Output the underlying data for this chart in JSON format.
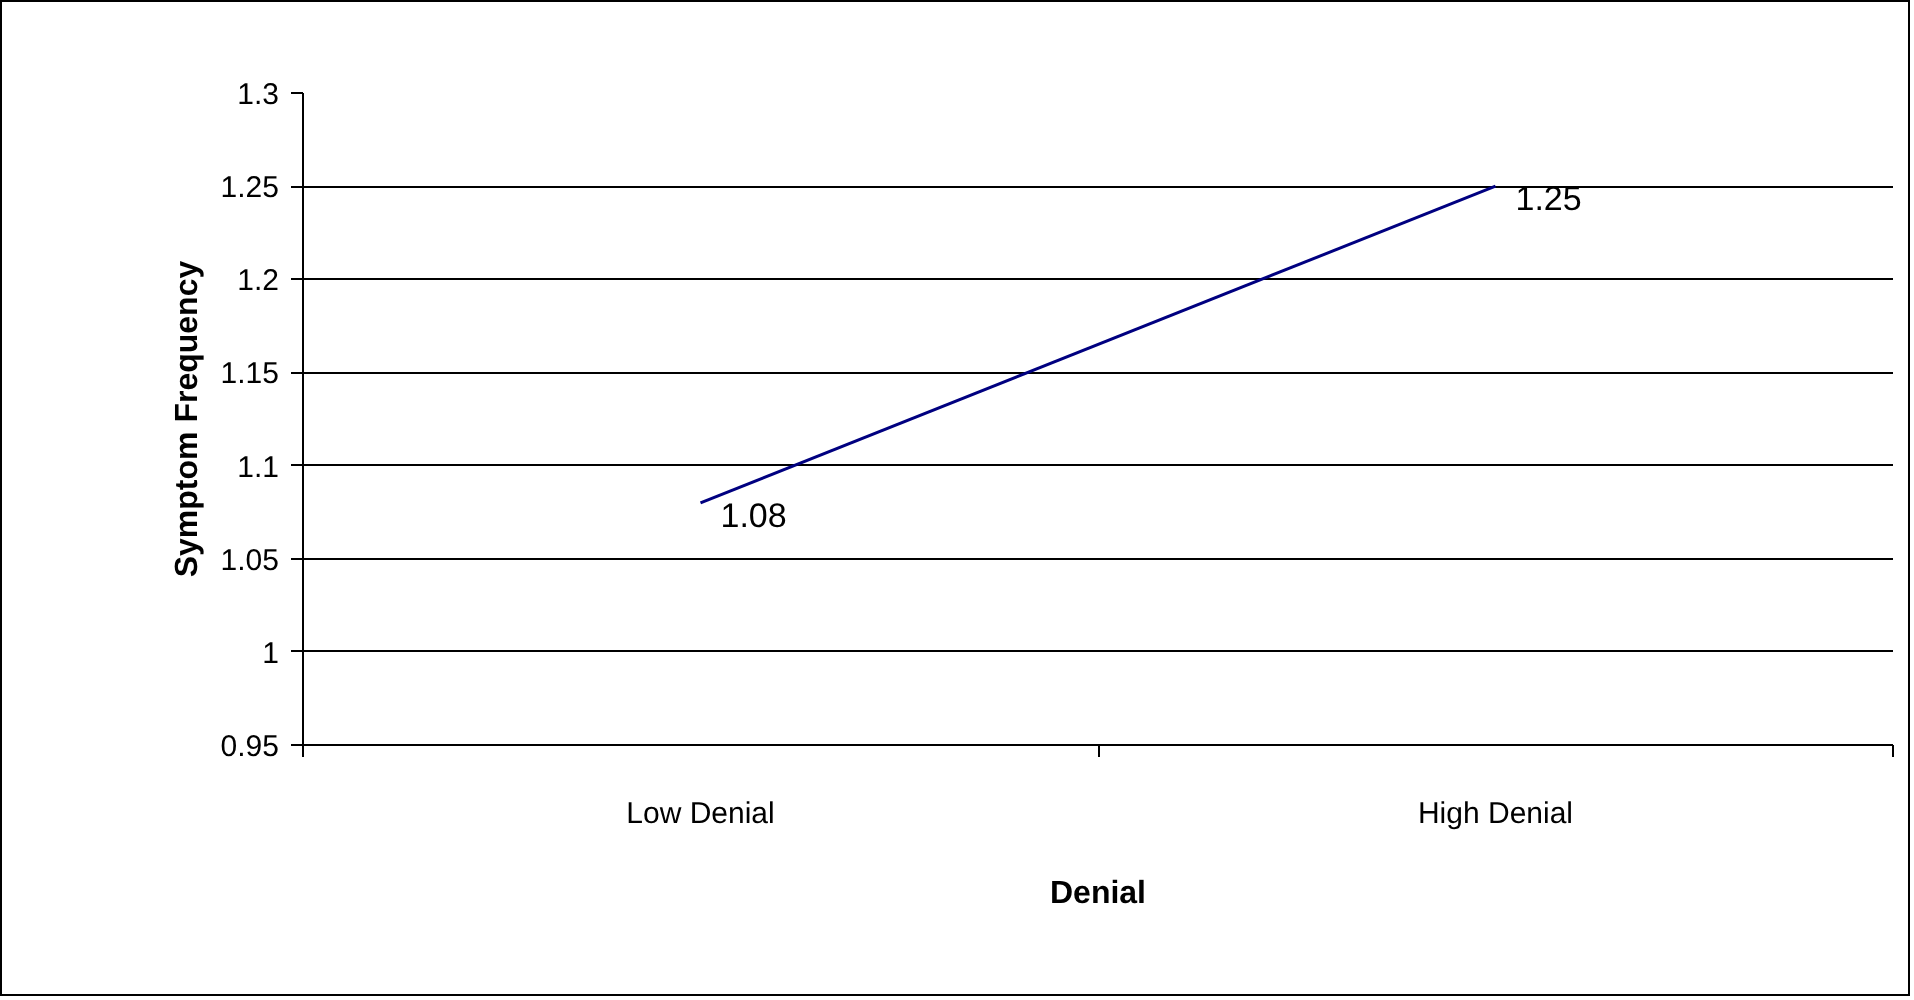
{
  "chart_data": {
    "type": "line",
    "xlabel": "Denial",
    "ylabel": "Symptom Frequency",
    "categories": [
      "Low Denial",
      "High Denial"
    ],
    "series": [
      {
        "color": "#000080",
        "values": [
          1.08,
          1.25
        ]
      }
    ],
    "ylim": [
      0.95,
      1.3
    ],
    "yticks": [
      0.95,
      1,
      1.05,
      1.1,
      1.15,
      1.2,
      1.25,
      1.3
    ],
    "grid": "y",
    "data_labels": true
  }
}
